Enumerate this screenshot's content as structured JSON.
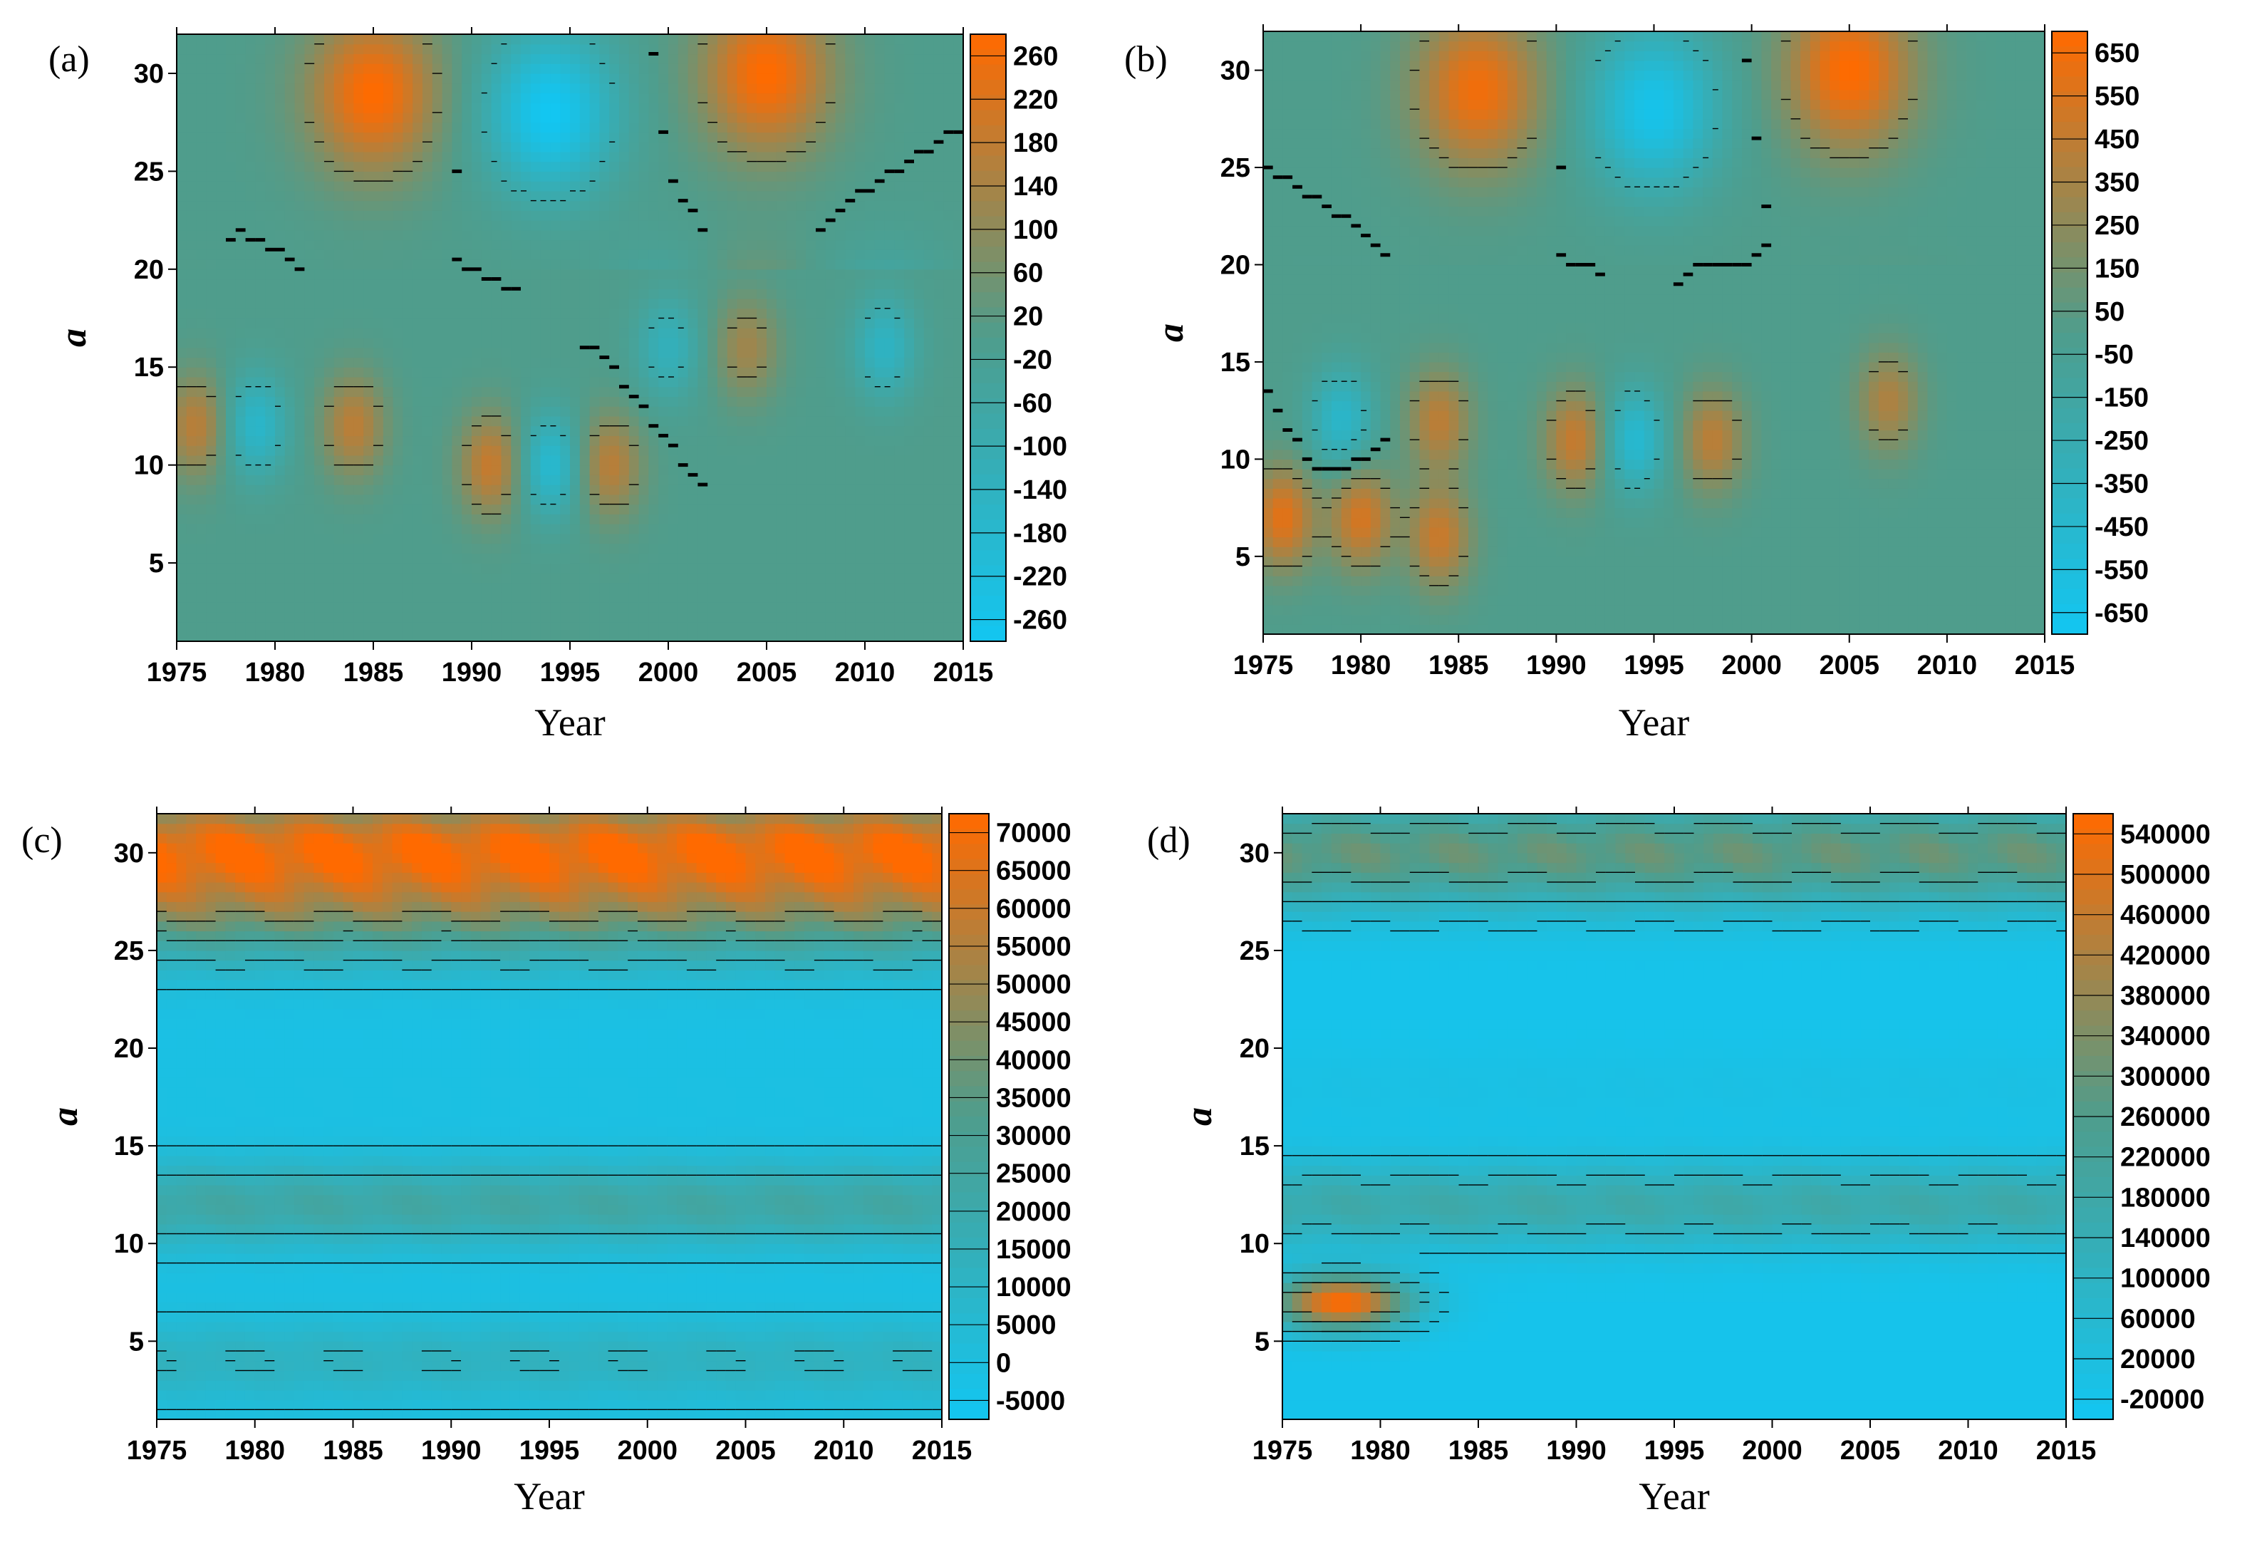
{
  "colors": {
    "low": "#12c6f2",
    "mid": "#4f9d8c",
    "high": "#ff6a00",
    "contour": "#000000"
  },
  "chart_data": [
    {
      "type": "heatmap",
      "panel": "(a)",
      "xlabel": "Year",
      "ylabel": "a",
      "xlim": [
        1975,
        2015
      ],
      "ylim": [
        1,
        32
      ],
      "x_ticks": [
        "1975",
        "1980",
        "1985",
        "1990",
        "1995",
        "2000",
        "2005",
        "2010",
        "2015"
      ],
      "y_ticks": [
        "5",
        "10",
        "15",
        "20",
        "25",
        "30"
      ],
      "colorbar_labels": [
        "260",
        "220",
        "180",
        "140",
        "100",
        "60",
        "20",
        "-20",
        "-60",
        "-100",
        "-140",
        "-180",
        "-220",
        "-260"
      ],
      "color_range": [
        -260,
        260
      ],
      "features": [
        {
          "year": 1985,
          "a": 29,
          "value": 260
        },
        {
          "year": 2005,
          "a": 30,
          "value": 260
        },
        {
          "year": 1994,
          "a": 28,
          "value": -260
        },
        {
          "year": 1976,
          "a": 12,
          "value": 160
        },
        {
          "year": 1984,
          "a": 12,
          "value": 160
        },
        {
          "year": 1991,
          "a": 10,
          "value": 180
        },
        {
          "year": 1997,
          "a": 10,
          "value": 160
        },
        {
          "year": 2004,
          "a": 16,
          "value": 120
        },
        {
          "year": 1979,
          "a": 12,
          "value": -160
        },
        {
          "year": 1994,
          "a": 10,
          "value": -180
        },
        {
          "year": 2000,
          "a": 16,
          "value": -120
        },
        {
          "year": 2011,
          "a": 16,
          "value": -140
        }
      ]
    },
    {
      "type": "heatmap",
      "panel": "(b)",
      "xlabel": "Year",
      "ylabel": "a",
      "xlim": [
        1975,
        2015
      ],
      "ylim": [
        1,
        32
      ],
      "x_ticks": [
        "1975",
        "1980",
        "1985",
        "1990",
        "1995",
        "2000",
        "2005",
        "2010",
        "2015"
      ],
      "y_ticks": [
        "5",
        "10",
        "15",
        "20",
        "25",
        "30"
      ],
      "colorbar_labels": [
        "650",
        "550",
        "450",
        "350",
        "250",
        "150",
        "50",
        "-50",
        "-150",
        "-250",
        "-350",
        "-450",
        "-550",
        "-650"
      ],
      "color_range": [
        -650,
        650
      ],
      "features": [
        {
          "year": 1986,
          "a": 29,
          "value": 600
        },
        {
          "year": 2005,
          "a": 30,
          "value": 650
        },
        {
          "year": 1995,
          "a": 28,
          "value": -600
        },
        {
          "year": 1976,
          "a": 7,
          "value": 550
        },
        {
          "year": 1980,
          "a": 7,
          "value": 500
        },
        {
          "year": 1984,
          "a": 6,
          "value": 450
        },
        {
          "year": 1984,
          "a": 12,
          "value": 400
        },
        {
          "year": 1991,
          "a": 11,
          "value": 450
        },
        {
          "year": 1998,
          "a": 11,
          "value": 400
        },
        {
          "year": 2007,
          "a": 13,
          "value": 350
        },
        {
          "year": 1994,
          "a": 11,
          "value": -450
        },
        {
          "year": 1979,
          "a": 12,
          "value": -400
        }
      ]
    },
    {
      "type": "heatmap",
      "panel": "(c)",
      "xlabel": "Year",
      "ylabel": "a",
      "xlim": [
        1975,
        2015
      ],
      "ylim": [
        1,
        32
      ],
      "x_ticks": [
        "1975",
        "1980",
        "1985",
        "1990",
        "1995",
        "2000",
        "2005",
        "2010",
        "2015"
      ],
      "y_ticks": [
        "5",
        "10",
        "15",
        "20",
        "25",
        "30"
      ],
      "colorbar_labels": [
        "70000",
        "65000",
        "60000",
        "55000",
        "50000",
        "45000",
        "40000",
        "35000",
        "30000",
        "25000",
        "20000",
        "15000",
        "10000",
        "5000",
        "0",
        "-5000"
      ],
      "color_range": [
        -5000,
        72000
      ],
      "features": [
        {
          "band_a": 30.5,
          "value": 62000
        },
        {
          "band_a": 27,
          "value": 35000
        },
        {
          "band_a": 12,
          "value": 24000
        },
        {
          "band_a": 4,
          "value": 14000
        },
        {
          "band_a": 18,
          "value": 1000
        }
      ]
    },
    {
      "type": "heatmap",
      "panel": "(d)",
      "xlabel": "Year",
      "ylabel": "a",
      "xlim": [
        1975,
        2015
      ],
      "ylim": [
        1,
        32
      ],
      "x_ticks": [
        "1975",
        "1980",
        "1985",
        "1990",
        "1995",
        "2000",
        "2005",
        "2010",
        "2015"
      ],
      "y_ticks": [
        "5",
        "10",
        "15",
        "20",
        "25",
        "30"
      ],
      "colorbar_labels": [
        "540000",
        "500000",
        "460000",
        "420000",
        "380000",
        "340000",
        "300000",
        "260000",
        "220000",
        "180000",
        "140000",
        "100000",
        "60000",
        "20000",
        "-20000"
      ],
      "color_range": [
        -20000,
        560000
      ],
      "features": [
        {
          "year": 1978,
          "a": 7,
          "value": 560000
        },
        {
          "band_a": 30,
          "value": 300000
        },
        {
          "band_a": 12,
          "value": 180000
        },
        {
          "band_a": 18,
          "value": 20000
        }
      ]
    }
  ]
}
